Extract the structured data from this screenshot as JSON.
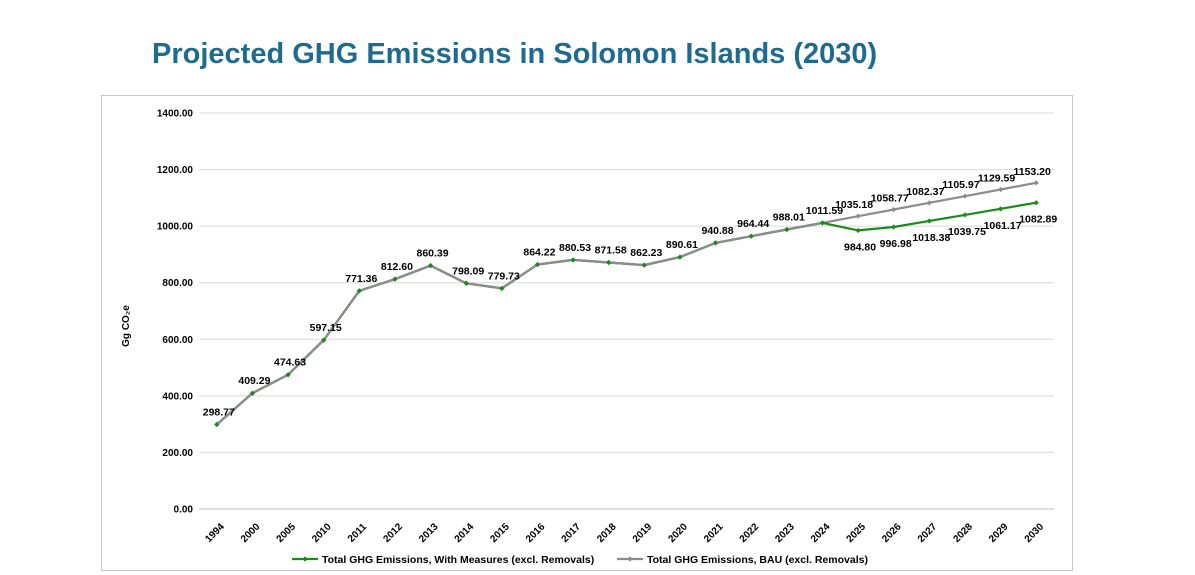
{
  "title": "Projected GHG Emissions in Solomon Islands (2030)",
  "chart_data": {
    "type": "line",
    "title": "Projected GHG Emissions in Solomon Islands (2030)",
    "ylabel": "Gg CO₂e",
    "ylim": [
      0,
      1400
    ],
    "yticks": [
      "0.00",
      "200.00",
      "400.00",
      "600.00",
      "800.00",
      "1000.00",
      "1200.00",
      "1400.00"
    ],
    "categories": [
      "1994",
      "2000",
      "2005",
      "2010",
      "2011",
      "2012",
      "2013",
      "2014",
      "2015",
      "2016",
      "2017",
      "2018",
      "2019",
      "2020",
      "2021",
      "2022",
      "2023",
      "2024",
      "2025",
      "2026",
      "2027",
      "2028",
      "2029",
      "2030"
    ],
    "grid": true,
    "legend_position": "bottom",
    "series": [
      {
        "name": "Total GHG Emissions, With Measures (excl. Removals)",
        "color": "#1a8a1a",
        "values": [
          298.77,
          409.29,
          474.63,
          597.15,
          771.36,
          812.6,
          860.39,
          798.09,
          779.73,
          864.22,
          880.53,
          871.58,
          862.23,
          890.61,
          940.88,
          964.44,
          988.01,
          1011.59,
          984.8,
          996.98,
          1018.38,
          1039.75,
          1061.17,
          1082.89
        ]
      },
      {
        "name": "Total GHG Emissions, BAU (excl. Removals)",
        "color": "#8c8c8c",
        "values": [
          298.77,
          409.29,
          474.63,
          597.15,
          771.36,
          812.6,
          860.39,
          798.09,
          779.73,
          864.22,
          880.53,
          871.58,
          862.23,
          890.61,
          940.88,
          964.44,
          988.01,
          1011.59,
          1035.18,
          1058.77,
          1082.37,
          1105.97,
          1129.59,
          1153.2
        ]
      }
    ],
    "data_labels": {
      "shared": [
        "298.77",
        "409.29",
        "474.63",
        "597.15",
        "771.36",
        "812.60",
        "860.39",
        "798.09",
        "779.73",
        "864.22",
        "880.53",
        "871.58",
        "862.23",
        "890.61",
        "940.88",
        "964.44",
        "988.01",
        "1011.59"
      ],
      "with_measures": [
        "984.80",
        "996.98",
        "1018.38",
        "1039.75",
        "1061.17",
        "1082.89"
      ],
      "bau": [
        "1035.18",
        "1058.77",
        "1082.37",
        "1105.97",
        "1129.59",
        "1153.20"
      ]
    }
  }
}
